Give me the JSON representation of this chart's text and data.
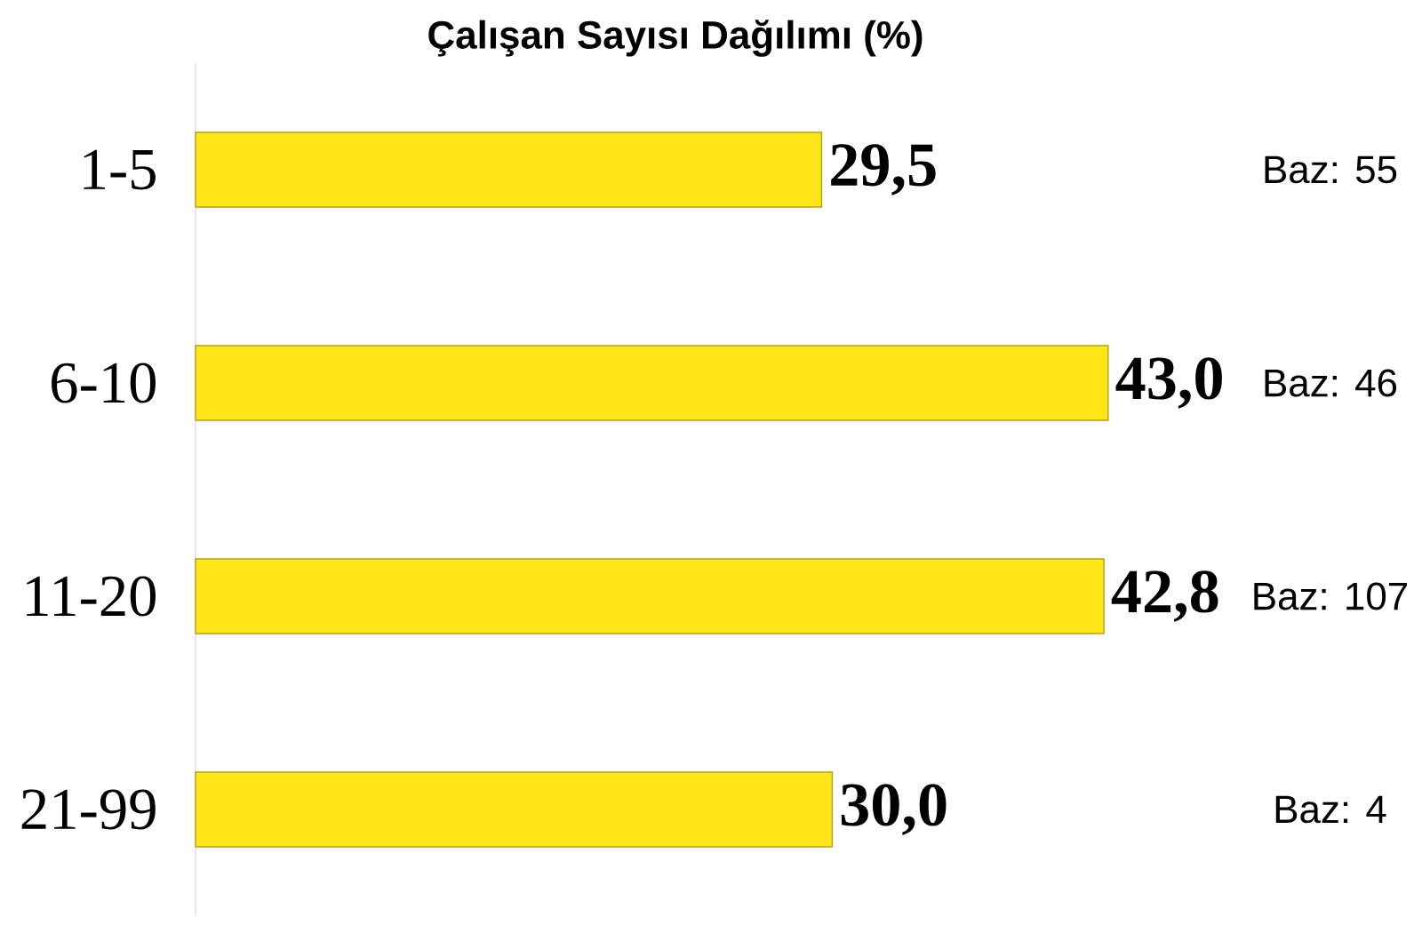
{
  "chart_data": {
    "type": "bar",
    "orientation": "horizontal",
    "title": "Çalışan Sayısı Dağılımı (%)",
    "categories": [
      "1-5",
      "6-10",
      "11-20",
      "21-99"
    ],
    "values": [
      29.5,
      43.0,
      42.8,
      30.0
    ],
    "value_labels": [
      "29,5",
      "43,0",
      "42,8",
      "30,0"
    ],
    "color": "#ffe619",
    "annotations": [
      "Baz: 55",
      "Baz: 46",
      "Baz: 107",
      "Baz: 4"
    ]
  }
}
